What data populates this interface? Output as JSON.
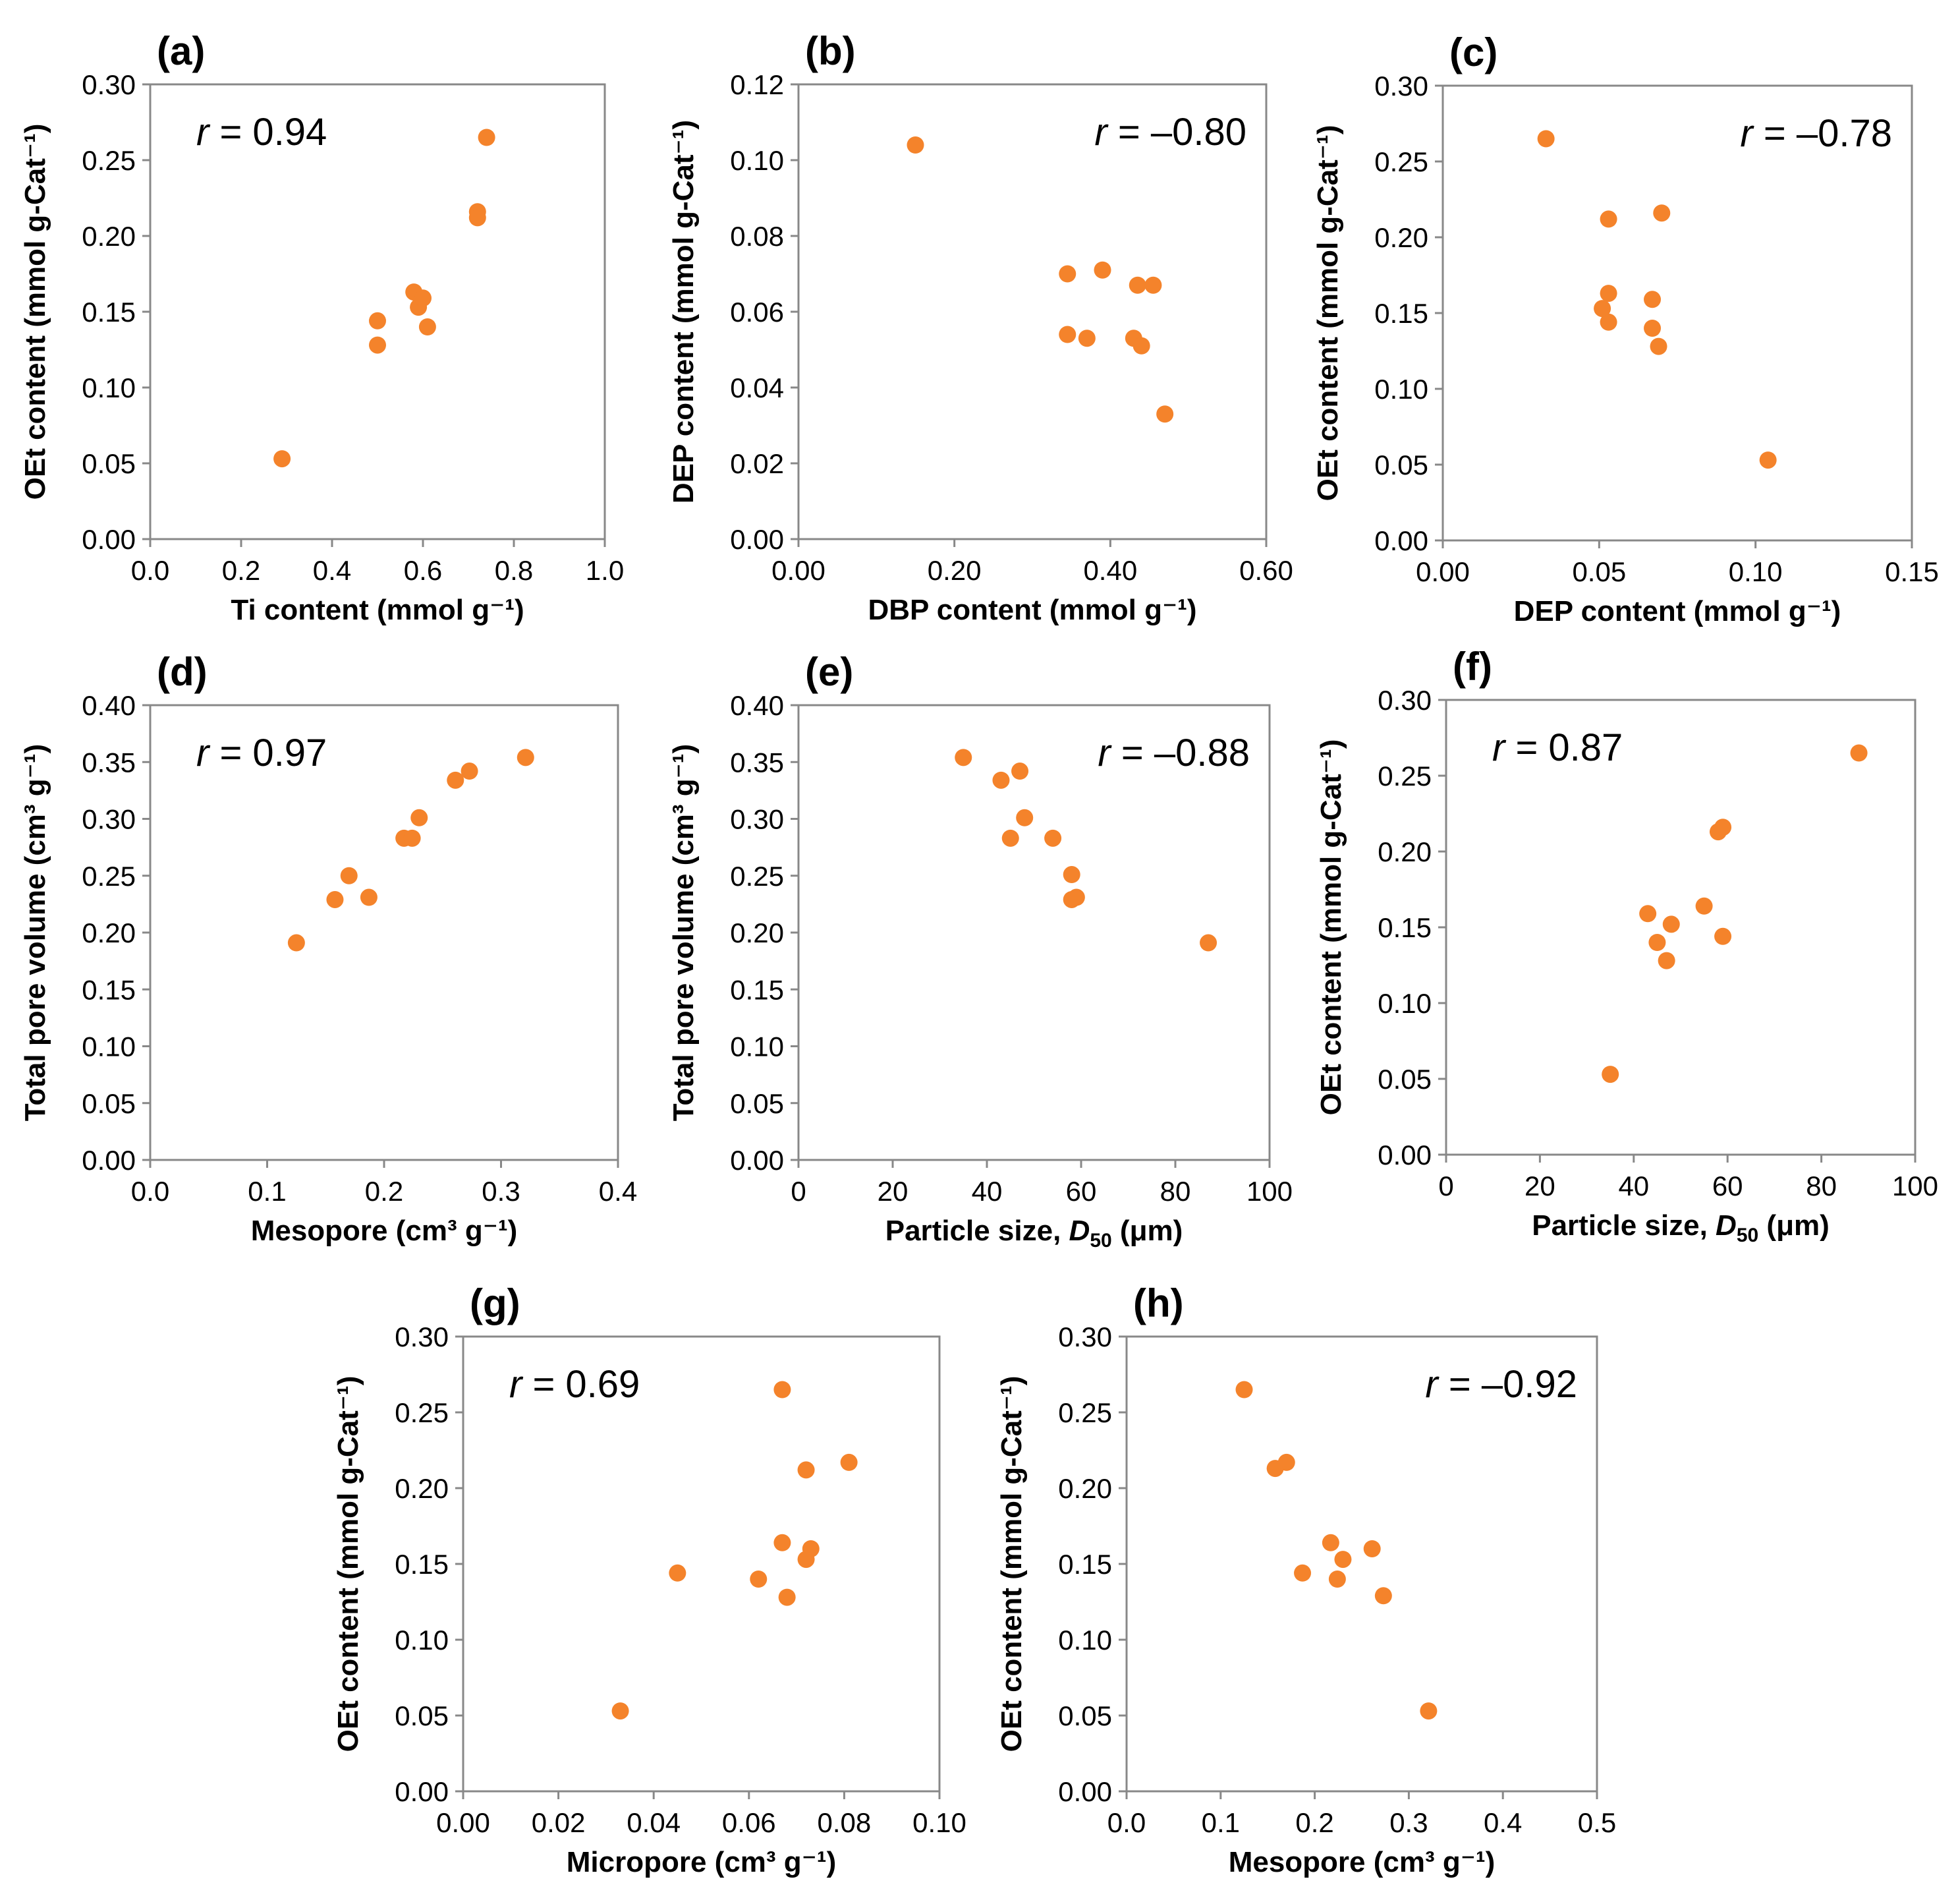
{
  "figure": {
    "marker_color": "#F4832B"
  },
  "chart_data": [
    {
      "type": "scatter",
      "panel": "(a)",
      "xlabel": "Ti content (mmol g⁻¹)",
      "ylabel": "OEt content (mmol g-Cat⁻¹)",
      "r_prefix": "r",
      "r_value": " = 0.94",
      "r_position": "top-left",
      "xlim": [
        0,
        1.0
      ],
      "ylim": [
        0,
        0.3
      ],
      "xticks": [
        "0.0",
        "0.2",
        "0.4",
        "0.6",
        "0.8",
        "1.0"
      ],
      "yticks": [
        "0.00",
        "0.05",
        "0.10",
        "0.15",
        "0.20",
        "0.25",
        "0.30"
      ],
      "points": [
        [
          0.29,
          0.053
        ],
        [
          0.5,
          0.144
        ],
        [
          0.5,
          0.128
        ],
        [
          0.58,
          0.163
        ],
        [
          0.59,
          0.153
        ],
        [
          0.6,
          0.159
        ],
        [
          0.61,
          0.14
        ],
        [
          0.72,
          0.216
        ],
        [
          0.72,
          0.212
        ],
        [
          0.74,
          0.265
        ]
      ]
    },
    {
      "type": "scatter",
      "panel": "(b)",
      "xlabel": "DBP content (mmol g⁻¹)",
      "ylabel": "DEP content (mmol g-Cat⁻¹)",
      "r_prefix": "r",
      "r_value": " = –0.80",
      "r_position": "top-right",
      "xlim": [
        0,
        0.6
      ],
      "ylim": [
        0,
        0.12
      ],
      "xticks": [
        "0.00",
        "0.20",
        "0.40",
        "0.60"
      ],
      "yticks": [
        "0.00",
        "0.02",
        "0.04",
        "0.06",
        "0.08",
        "0.10",
        "0.12"
      ],
      "points": [
        [
          0.15,
          0.104
        ],
        [
          0.345,
          0.07
        ],
        [
          0.39,
          0.071
        ],
        [
          0.345,
          0.054
        ],
        [
          0.37,
          0.053
        ],
        [
          0.435,
          0.067
        ],
        [
          0.455,
          0.067
        ],
        [
          0.43,
          0.053
        ],
        [
          0.44,
          0.051
        ],
        [
          0.47,
          0.033
        ]
      ]
    },
    {
      "type": "scatter",
      "panel": "(c)",
      "xlabel": "DEP content (mmol g⁻¹)",
      "ylabel": "OEt content (mmol g-Cat⁻¹)",
      "r_prefix": "r",
      "r_value": " = –0.78",
      "r_position": "top-right",
      "xlim": [
        0,
        0.15
      ],
      "ylim": [
        0,
        0.3
      ],
      "xticks": [
        "0.00",
        "0.05",
        "0.10",
        "0.15"
      ],
      "yticks": [
        "0.00",
        "0.05",
        "0.10",
        "0.15",
        "0.20",
        "0.25",
        "0.30"
      ],
      "points": [
        [
          0.033,
          0.265
        ],
        [
          0.053,
          0.212
        ],
        [
          0.053,
          0.163
        ],
        [
          0.051,
          0.153
        ],
        [
          0.053,
          0.144
        ],
        [
          0.067,
          0.159
        ],
        [
          0.067,
          0.14
        ],
        [
          0.069,
          0.128
        ],
        [
          0.07,
          0.216
        ],
        [
          0.104,
          0.053
        ]
      ]
    },
    {
      "type": "scatter",
      "panel": "(d)",
      "xlabel": "Mesopore (cm³ g⁻¹)",
      "ylabel": "Total pore volume (cm³ g⁻¹)",
      "r_prefix": "r",
      "r_value": " = 0.97",
      "r_position": "top-left",
      "xlim": [
        0,
        0.4
      ],
      "ylim": [
        0,
        0.4
      ],
      "xticks": [
        "0.0",
        "0.1",
        "0.2",
        "0.3",
        "0.4"
      ],
      "yticks": [
        "0.00",
        "0.05",
        "0.10",
        "0.15",
        "0.20",
        "0.25",
        "0.30",
        "0.35",
        "0.40"
      ],
      "points": [
        [
          0.125,
          0.191
        ],
        [
          0.158,
          0.229
        ],
        [
          0.17,
          0.25
        ],
        [
          0.187,
          0.231
        ],
        [
          0.217,
          0.283
        ],
        [
          0.224,
          0.283
        ],
        [
          0.23,
          0.301
        ],
        [
          0.261,
          0.334
        ],
        [
          0.273,
          0.342
        ],
        [
          0.321,
          0.354
        ]
      ]
    },
    {
      "type": "scatter",
      "panel": "(e)",
      "xlabel": "Particle size, ",
      "xlabel_italic": "D",
      "xlabel_sub": "50",
      "xlabel_suffix": " (μm)",
      "ylabel": "Total pore volume (cm³ g⁻¹)",
      "r_prefix": "r",
      "r_value": " = –0.88",
      "r_position": "top-right",
      "xlim": [
        0,
        100
      ],
      "ylim": [
        0,
        0.4
      ],
      "xticks": [
        "0",
        "20",
        "40",
        "60",
        "80",
        "100"
      ],
      "yticks": [
        "0.00",
        "0.05",
        "0.10",
        "0.15",
        "0.20",
        "0.25",
        "0.30",
        "0.35",
        "0.40"
      ],
      "points": [
        [
          35,
          0.354
        ],
        [
          43,
          0.334
        ],
        [
          47,
          0.342
        ],
        [
          48,
          0.301
        ],
        [
          45,
          0.283
        ],
        [
          54,
          0.283
        ],
        [
          58,
          0.251
        ],
        [
          58,
          0.229
        ],
        [
          59,
          0.231
        ],
        [
          87,
          0.191
        ]
      ]
    },
    {
      "type": "scatter",
      "panel": "(f)",
      "xlabel": "Particle size, ",
      "xlabel_italic": "D",
      "xlabel_sub": "50",
      "xlabel_suffix": " (μm)",
      "ylabel": "OEt content (mmol g-Cat⁻¹)",
      "r_prefix": "r",
      "r_value": " = 0.87",
      "r_position": "top-left",
      "xlim": [
        0,
        100
      ],
      "ylim": [
        0,
        0.3
      ],
      "xticks": [
        "0",
        "20",
        "40",
        "60",
        "80",
        "100"
      ],
      "yticks": [
        "0.00",
        "0.05",
        "0.10",
        "0.15",
        "0.20",
        "0.25",
        "0.30"
      ],
      "points": [
        [
          35,
          0.053
        ],
        [
          43,
          0.159
        ],
        [
          45,
          0.14
        ],
        [
          47,
          0.128
        ],
        [
          48,
          0.152
        ],
        [
          55,
          0.164
        ],
        [
          58,
          0.213
        ],
        [
          59,
          0.216
        ],
        [
          59,
          0.144
        ],
        [
          88,
          0.265
        ]
      ]
    },
    {
      "type": "scatter",
      "panel": "(g)",
      "xlabel": "Micropore (cm³ g⁻¹)",
      "ylabel": "OEt content (mmol g-Cat⁻¹)",
      "r_prefix": "r",
      "r_value": " = 0.69",
      "r_position": "top-left",
      "xlim": [
        0,
        0.1
      ],
      "ylim": [
        0,
        0.3
      ],
      "xticks": [
        "0.00",
        "0.02",
        "0.04",
        "0.06",
        "0.08",
        "0.10"
      ],
      "yticks": [
        "0.00",
        "0.05",
        "0.10",
        "0.15",
        "0.20",
        "0.25",
        "0.30"
      ],
      "points": [
        [
          0.033,
          0.053
        ],
        [
          0.045,
          0.144
        ],
        [
          0.062,
          0.14
        ],
        [
          0.068,
          0.128
        ],
        [
          0.067,
          0.164
        ],
        [
          0.072,
          0.153
        ],
        [
          0.073,
          0.16
        ],
        [
          0.072,
          0.212
        ],
        [
          0.081,
          0.217
        ],
        [
          0.067,
          0.265
        ]
      ]
    },
    {
      "type": "scatter",
      "panel": "(h)",
      "xlabel": "Mesopore (cm³ g⁻¹)",
      "ylabel": "OEt content (mmol g-Cat⁻¹)",
      "r_prefix": "r",
      "r_value": " = –0.92",
      "r_position": "top-right",
      "xlim": [
        0,
        0.5
      ],
      "ylim": [
        0,
        0.3
      ],
      "xticks": [
        "0.0",
        "0.1",
        "0.2",
        "0.3",
        "0.4",
        "0.5"
      ],
      "yticks": [
        "0.00",
        "0.05",
        "0.10",
        "0.15",
        "0.20",
        "0.25",
        "0.30"
      ],
      "points": [
        [
          0.125,
          0.265
        ],
        [
          0.158,
          0.213
        ],
        [
          0.17,
          0.217
        ],
        [
          0.187,
          0.144
        ],
        [
          0.217,
          0.164
        ],
        [
          0.224,
          0.14
        ],
        [
          0.23,
          0.153
        ],
        [
          0.261,
          0.16
        ],
        [
          0.273,
          0.129
        ],
        [
          0.321,
          0.053
        ]
      ]
    }
  ]
}
